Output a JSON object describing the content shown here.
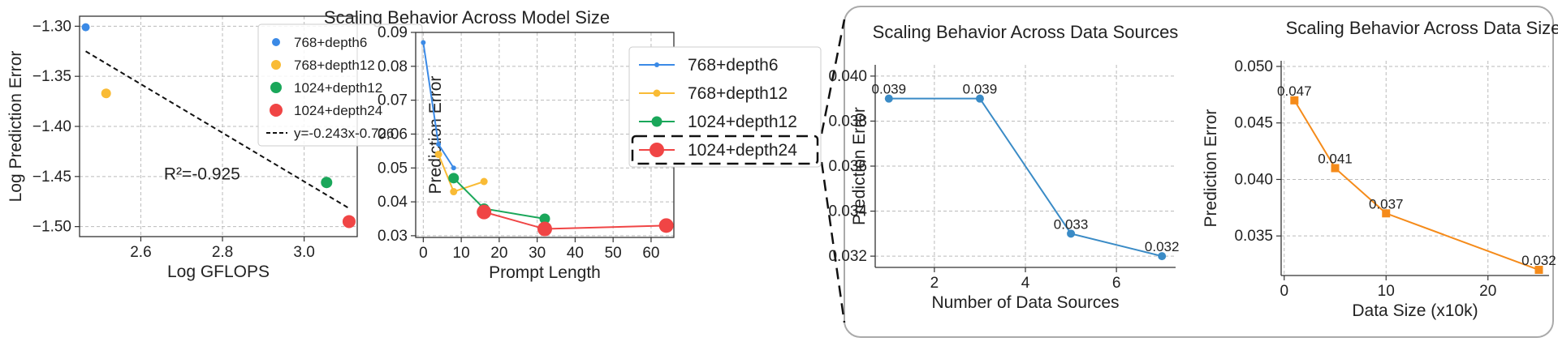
{
  "suptitle_left": "Scaling Behavior Across Model Size",
  "colors": {
    "blue": "#3b8ae6",
    "orange": "#f9bb35",
    "green": "#1aa75a",
    "red": "#f04545",
    "line_blue": "#3a8bc6",
    "line_orange": "#f58b1a"
  },
  "chart_data": [
    {
      "type": "scatter",
      "xlabel": "Log GFLOPS",
      "ylabel": "Log Prediction Error",
      "xlim": [
        2.45,
        3.13
      ],
      "ylim": [
        -1.51,
        -1.29
      ],
      "xticks": [
        2.6,
        2.8,
        3.0
      ],
      "xtick_labels": [
        "2.6",
        "2.8",
        "3.0"
      ],
      "yticks": [
        -1.3,
        -1.35,
        -1.4,
        -1.45,
        -1.5
      ],
      "ytick_labels": [
        "−1.30",
        "−1.35",
        "−1.40",
        "−1.45",
        "−1.50"
      ],
      "series": [
        {
          "name": "768+depth6",
          "color": "blue",
          "size": 5,
          "x": [
            2.465
          ],
          "y": [
            -1.301
          ]
        },
        {
          "name": "768+depth12",
          "color": "orange",
          "size": 6,
          "x": [
            2.515
          ],
          "y": [
            -1.367
          ]
        },
        {
          "name": "1024+depth12",
          "color": "green",
          "size": 7,
          "x": [
            3.055
          ],
          "y": [
            -1.456
          ]
        },
        {
          "name": "1024+depth24",
          "color": "red",
          "size": 8,
          "x": [
            3.11
          ],
          "y": [
            -1.495
          ]
        }
      ],
      "fit": {
        "name": "y=-0.243x-0.726",
        "slope": -0.243,
        "intercept": -0.726,
        "x_range": [
          2.465,
          3.11
        ]
      },
      "annotation": {
        "text": "R²=-0.925",
        "x": 2.75,
        "y": -1.453
      },
      "legend_loc": "top-right",
      "grid": true
    },
    {
      "type": "line",
      "xlabel": "Prompt Length",
      "ylabel": "Prediction Error",
      "xlim": [
        -2,
        66
      ],
      "ylim": [
        0.0295,
        0.09
      ],
      "xticks": [
        0,
        10,
        20,
        30,
        40,
        50,
        60
      ],
      "xtick_labels": [
        "0",
        "10",
        "20",
        "30",
        "40",
        "50",
        "60"
      ],
      "yticks": [
        0.03,
        0.04,
        0.05,
        0.06,
        0.07,
        0.08,
        0.09
      ],
      "ytick_labels": [
        "0.03",
        "0.04",
        "0.05",
        "0.06",
        "0.07",
        "0.08",
        "0.09"
      ],
      "series": [
        {
          "name": "768+depth6",
          "color": "blue",
          "size": 3,
          "x": [
            0,
            4,
            8
          ],
          "y": [
            0.087,
            0.057,
            0.05
          ]
        },
        {
          "name": "768+depth12",
          "color": "orange",
          "size": 4.5,
          "x": [
            4,
            8,
            16
          ],
          "y": [
            0.054,
            0.043,
            0.046
          ]
        },
        {
          "name": "1024+depth12",
          "color": "green",
          "size": 6.5,
          "x": [
            8,
            16,
            32
          ],
          "y": [
            0.047,
            0.038,
            0.035
          ]
        },
        {
          "name": "1024+depth24",
          "color": "red",
          "size": 9,
          "x": [
            16,
            32,
            64
          ],
          "y": [
            0.037,
            0.032,
            0.033
          ]
        }
      ],
      "legend_loc": "top-right",
      "grid": true
    },
    {
      "type": "line",
      "title": "Scaling Behavior Across Data Sources",
      "xlabel": "Number of Data Sources",
      "ylabel": "Prediction Error",
      "xlim": [
        0.7,
        7.3
      ],
      "ylim": [
        0.0315,
        0.0405
      ],
      "xticks": [
        2,
        4,
        6
      ],
      "xtick_labels": [
        "2",
        "4",
        "6"
      ],
      "yticks": [
        0.032,
        0.034,
        0.036,
        0.038,
        0.04
      ],
      "ytick_labels": [
        "0.032",
        "0.034",
        "0.036",
        "0.038",
        "0.040"
      ],
      "series": [
        {
          "color": "line_blue",
          "marker": "circle",
          "x": [
            1,
            3,
            5,
            7
          ],
          "y": [
            0.039,
            0.039,
            0.033,
            0.032
          ],
          "labels": [
            "0.039",
            "0.039",
            "0.033",
            "0.032"
          ]
        }
      ],
      "grid": true
    },
    {
      "type": "line",
      "title": "Scaling Behavior Across Data Size",
      "xlabel": "Data Size (x10k)",
      "ylabel": "Prediction Error",
      "xlim": [
        -0.3,
        26
      ],
      "ylim": [
        0.0315,
        0.0505
      ],
      "xticks": [
        0,
        10,
        20
      ],
      "xtick_labels": [
        "0",
        "10",
        "20"
      ],
      "yticks": [
        0.035,
        0.04,
        0.045,
        0.05
      ],
      "ytick_labels": [
        "0.035",
        "0.040",
        "0.045",
        "0.050"
      ],
      "series": [
        {
          "color": "line_orange",
          "marker": "square",
          "x": [
            1,
            5,
            10,
            25
          ],
          "y": [
            0.047,
            0.041,
            0.037,
            0.032
          ],
          "labels": [
            "0.047",
            "0.041",
            "0.037",
            "0.032"
          ]
        }
      ],
      "grid": true
    }
  ]
}
